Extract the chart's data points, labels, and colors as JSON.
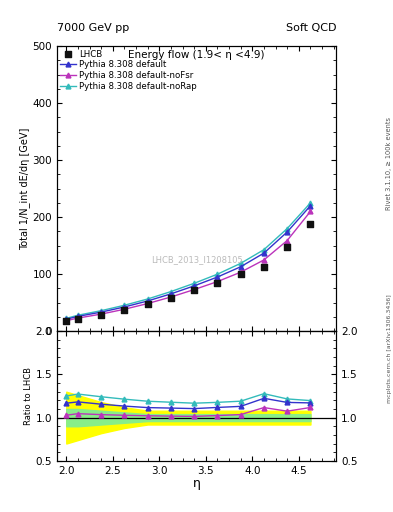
{
  "title_top_left": "7000 GeV pp",
  "title_top_right": "Soft QCD",
  "plot_title": "Energy flow (1.9< η <4.9)",
  "xlabel": "η",
  "ylabel_main": "Total 1/N_int dE/dη [GeV]",
  "ylabel_ratio": "Ratio to LHCB",
  "right_label": "Rivet 3.1.10, ≥ 100k events",
  "watermark": "LHCB_2013_I1208105",
  "arxiv_label": "mcplots.cern.ch [arXiv:1306.3436]",
  "eta_points": [
    2.0,
    2.125,
    2.375,
    2.625,
    2.875,
    3.125,
    3.375,
    3.625,
    3.875,
    4.125,
    4.375,
    4.625
  ],
  "lhcb_data": [
    18.0,
    22.0,
    29.0,
    37.5,
    47.5,
    59.0,
    72.0,
    85.0,
    100.0,
    112.0,
    148.0,
    188.0
  ],
  "pythia_default": [
    21.0,
    26.0,
    33.5,
    42.5,
    53.0,
    65.5,
    79.5,
    95.0,
    113.0,
    137.0,
    174.0,
    220.0
  ],
  "pythia_nofsr": [
    18.5,
    23.0,
    30.0,
    38.5,
    48.5,
    60.0,
    73.0,
    87.0,
    103.5,
    125.0,
    159.0,
    210.0
  ],
  "pythia_norap": [
    22.5,
    28.0,
    36.0,
    45.5,
    56.5,
    69.5,
    84.0,
    100.0,
    119.0,
    143.0,
    180.0,
    225.0
  ],
  "color_default": "#3333cc",
  "color_nofsr": "#bb33bb",
  "color_norap": "#33bbbb",
  "color_lhcb": "#111111",
  "ylim_main": [
    0,
    500
  ],
  "ylim_ratio": [
    0.5,
    2.0
  ],
  "yticks_main": [
    0,
    100,
    200,
    300,
    400,
    500
  ],
  "yticks_ratio": [
    0.5,
    1.0,
    1.5,
    2.0
  ],
  "xlim": [
    1.9,
    4.9
  ],
  "xticks": [
    2.0,
    2.5,
    3.0,
    3.5,
    4.0,
    4.5
  ],
  "green_band_lo": [
    0.9,
    0.9,
    0.92,
    0.94,
    0.96,
    0.96,
    0.96,
    0.96,
    0.96,
    0.96,
    0.96,
    0.96
  ],
  "green_band_hi": [
    1.1,
    1.1,
    1.08,
    1.06,
    1.04,
    1.04,
    1.04,
    1.04,
    1.04,
    1.04,
    1.04,
    1.04
  ],
  "yellow_band_lo": [
    0.7,
    0.74,
    0.82,
    0.88,
    0.92,
    0.92,
    0.92,
    0.92,
    0.92,
    0.92,
    0.92,
    0.92
  ],
  "yellow_band_hi": [
    1.3,
    1.26,
    1.18,
    1.12,
    1.08,
    1.08,
    1.08,
    1.08,
    1.08,
    1.08,
    1.08,
    1.08
  ]
}
